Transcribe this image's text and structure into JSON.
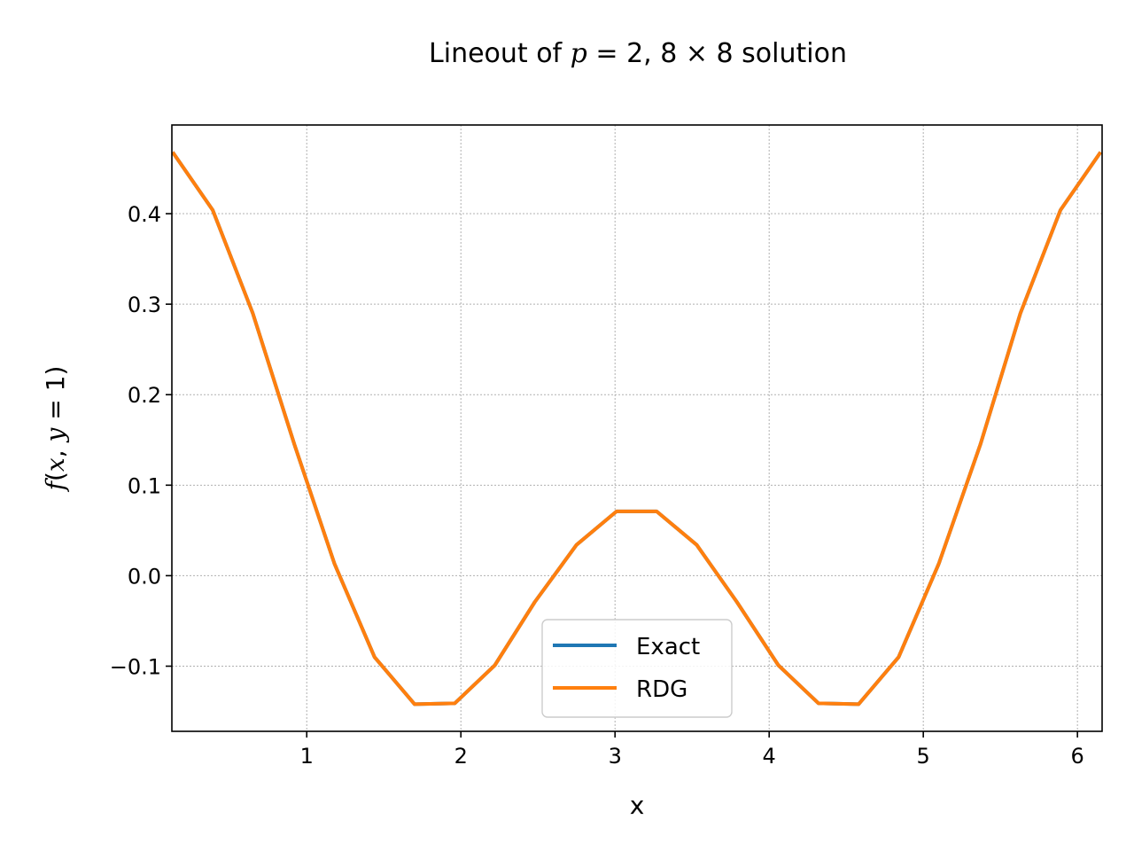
{
  "chart_data": {
    "type": "line",
    "title": "Lineout of p = 2, 8 × 8 solution",
    "xlabel": "x",
    "ylabel": "f(x, y = 1)",
    "xlim": [
      0.125,
      6.16
    ],
    "ylim": [
      -0.172,
      0.498
    ],
    "xticks": [
      1,
      2,
      3,
      4,
      5,
      6
    ],
    "xtick_labels": [
      "1",
      "2",
      "3",
      "4",
      "5",
      "6"
    ],
    "yticks": [
      -0.1,
      0.0,
      0.1,
      0.2,
      0.3,
      0.4
    ],
    "ytick_labels": [
      "−0.1",
      "0.0",
      "0.1",
      "0.2",
      "0.3",
      "0.4"
    ],
    "grid": true,
    "legend_position": "lower-center",
    "series": [
      {
        "name": "Exact",
        "color": "#1f77b4",
        "x": [
          0.13,
          0.39,
          0.65,
          0.92,
          1.18,
          1.44,
          1.7,
          1.96,
          2.22,
          2.48,
          2.75,
          3.01,
          3.27,
          3.53,
          3.79,
          4.06,
          4.32,
          4.58,
          4.84,
          5.1,
          5.37,
          5.63,
          5.89,
          6.15
        ],
        "y": [
          0.468,
          0.404,
          0.29,
          0.145,
          0.013,
          -0.09,
          -0.142,
          -0.141,
          -0.099,
          -0.029,
          0.034,
          0.071,
          0.071,
          0.034,
          -0.029,
          -0.099,
          -0.141,
          -0.142,
          -0.09,
          0.013,
          0.145,
          0.29,
          0.404,
          0.468
        ]
      },
      {
        "name": "RDG",
        "color": "#ff7f0e",
        "x": [
          0.13,
          0.39,
          0.65,
          0.92,
          1.18,
          1.44,
          1.7,
          1.96,
          2.22,
          2.48,
          2.75,
          3.01,
          3.27,
          3.53,
          3.79,
          4.06,
          4.32,
          4.58,
          4.84,
          5.1,
          5.37,
          5.63,
          5.89,
          6.15
        ],
        "y": [
          0.468,
          0.404,
          0.29,
          0.145,
          0.013,
          -0.09,
          -0.142,
          -0.141,
          -0.099,
          -0.029,
          0.034,
          0.071,
          0.071,
          0.034,
          -0.029,
          -0.099,
          -0.141,
          -0.142,
          -0.09,
          0.013,
          0.145,
          0.29,
          0.404,
          0.468
        ]
      }
    ]
  }
}
